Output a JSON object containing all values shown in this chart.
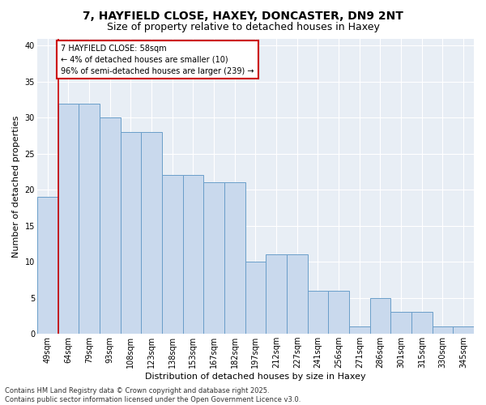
{
  "title1": "7, HAYFIELD CLOSE, HAXEY, DONCASTER, DN9 2NT",
  "title2": "Size of property relative to detached houses in Haxey",
  "xlabel": "Distribution of detached houses by size in Haxey",
  "ylabel": "Number of detached properties",
  "categories": [
    "49sqm",
    "64sqm",
    "79sqm",
    "93sqm",
    "108sqm",
    "123sqm",
    "138sqm",
    "153sqm",
    "167sqm",
    "182sqm",
    "197sqm",
    "212sqm",
    "227sqm",
    "241sqm",
    "256sqm",
    "271sqm",
    "286sqm",
    "301sqm",
    "315sqm",
    "330sqm",
    "345sqm"
  ],
  "bar_values": [
    19,
    32,
    32,
    30,
    28,
    28,
    22,
    22,
    21,
    21,
    10,
    11,
    11,
    6,
    6,
    1,
    5,
    3,
    3,
    1,
    1
  ],
  "bar_color": "#c9d9ed",
  "bar_edge_color": "#6a9ec9",
  "annotation_text": "7 HAYFIELD CLOSE: 58sqm\n← 4% of detached houses are smaller (10)\n96% of semi-detached houses are larger (239) →",
  "annotation_box_color": "#ffffff",
  "annotation_box_edge": "#cc0000",
  "ylim": [
    0,
    41
  ],
  "yticks": [
    0,
    5,
    10,
    15,
    20,
    25,
    30,
    35,
    40
  ],
  "bg_color": "#e8eef5",
  "footer": "Contains HM Land Registry data © Crown copyright and database right 2025.\nContains public sector information licensed under the Open Government Licence v3.0.",
  "title1_fontsize": 10,
  "title2_fontsize": 9,
  "ylabel_fontsize": 8,
  "xlabel_fontsize": 8,
  "tick_fontsize": 7,
  "ann_fontsize": 7,
  "footer_fontsize": 6
}
